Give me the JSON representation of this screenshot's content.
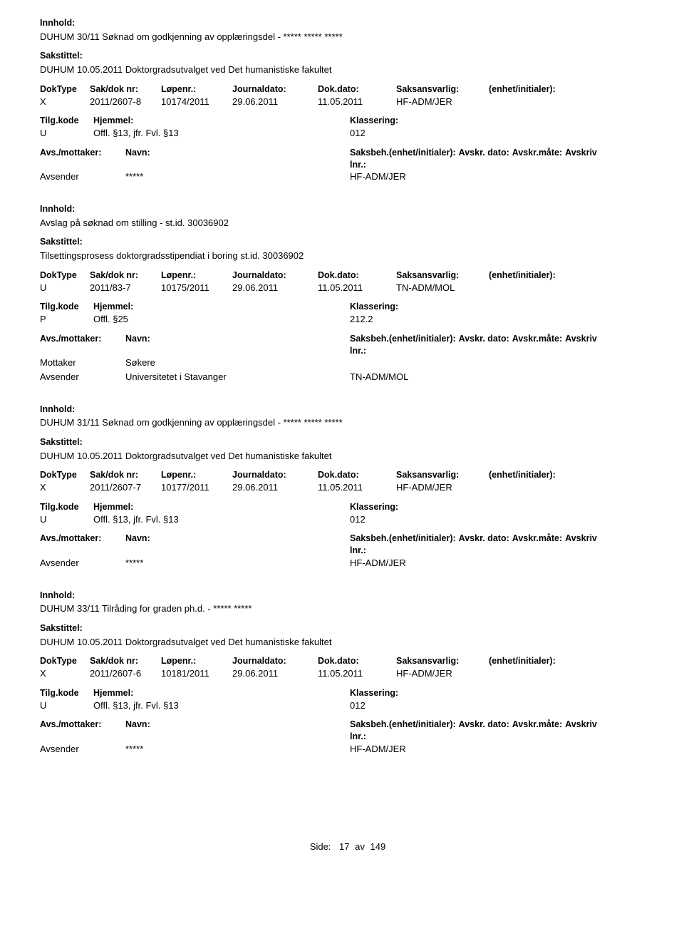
{
  "labels": {
    "innhold": "Innhold:",
    "sakstittel": "Sakstittel:",
    "doktype": "DokType",
    "sakdok": "Sak/dok nr:",
    "lopenr": "Løpenr.:",
    "journaldato": "Journaldato:",
    "dokdato": "Dok.dato:",
    "saksansvarlig": "Saksansvarlig:",
    "enhet": "(enhet/initialer):",
    "tilgkode": "Tilg.kode",
    "hjemmel": "Hjemmel:",
    "klassering": "Klassering:",
    "avsmottaker": "Avs./mottaker:",
    "navn": "Navn:",
    "saksbeh": "Saksbeh.(enhet/initialer):",
    "avskrdato": "Avskr. dato:",
    "avskrmate": "Avskr.måte:",
    "avskrivlnr": "Avskriv lnr.:",
    "side": "Side:",
    "av": "av"
  },
  "page": {
    "current": "17",
    "total": "149"
  },
  "records": [
    {
      "innhold": "DUHUM 30/11 Søknad om godkjenning av opplæringsdel - ***** ***** *****",
      "sakstittel": "DUHUM 10.05.2011 Doktorgradsutvalget ved Det humanistiske fakultet",
      "doktype": "X",
      "sakdok": "2011/2607-8",
      "lopenr": "10174/2011",
      "journaldato": "29.06.2011",
      "dokdato": "11.05.2011",
      "saksansvarlig": "HF-ADM/JER",
      "enhet_value": "",
      "tilgkode": "U",
      "hjemmel": "Offl. §13, jfr. Fvl. §13",
      "klassering": "012",
      "parties": [
        {
          "role": "Avsender",
          "navn": "*****",
          "saksbeh": "HF-ADM/JER"
        }
      ]
    },
    {
      "innhold": "Avslag på søknad om stilling - st.id. 30036902",
      "sakstittel": "Tilsettingsprosess doktorgradsstipendiat i boring st.id. 30036902",
      "doktype": "U",
      "sakdok": "2011/83-7",
      "lopenr": "10175/2011",
      "journaldato": "29.06.2011",
      "dokdato": "11.05.2011",
      "saksansvarlig": "TN-ADM/MOL",
      "enhet_value": "",
      "tilgkode": "P",
      "hjemmel": "Offl. §25",
      "klassering": "212.2",
      "parties": [
        {
          "role": "Mottaker",
          "navn": "Søkere",
          "saksbeh": ""
        },
        {
          "role": "Avsender",
          "navn": "Universitetet i Stavanger",
          "saksbeh": "TN-ADM/MOL"
        }
      ]
    },
    {
      "innhold": "DUHUM 31/11 Søknad om godkjenning av opplæringsdel - ***** ***** *****",
      "sakstittel": "DUHUM 10.05.2011 Doktorgradsutvalget ved Det humanistiske fakultet",
      "doktype": "X",
      "sakdok": "2011/2607-7",
      "lopenr": "10177/2011",
      "journaldato": "29.06.2011",
      "dokdato": "11.05.2011",
      "saksansvarlig": "HF-ADM/JER",
      "enhet_value": "",
      "tilgkode": "U",
      "hjemmel": "Offl. §13, jfr. Fvl. §13",
      "klassering": "012",
      "parties": [
        {
          "role": "Avsender",
          "navn": "*****",
          "saksbeh": "HF-ADM/JER"
        }
      ]
    },
    {
      "innhold": "DUHUM 33/11 Tilråding for graden ph.d. - ***** *****",
      "sakstittel": "DUHUM 10.05.2011 Doktorgradsutvalget ved Det humanistiske fakultet",
      "doktype": "X",
      "sakdok": "2011/2607-6",
      "lopenr": "10181/2011",
      "journaldato": "29.06.2011",
      "dokdato": "11.05.2011",
      "saksansvarlig": "HF-ADM/JER",
      "enhet_value": "",
      "tilgkode": "U",
      "hjemmel": "Offl. §13, jfr. Fvl. §13",
      "klassering": "012",
      "parties": [
        {
          "role": "Avsender",
          "navn": "*****",
          "saksbeh": "HF-ADM/JER"
        }
      ]
    }
  ]
}
